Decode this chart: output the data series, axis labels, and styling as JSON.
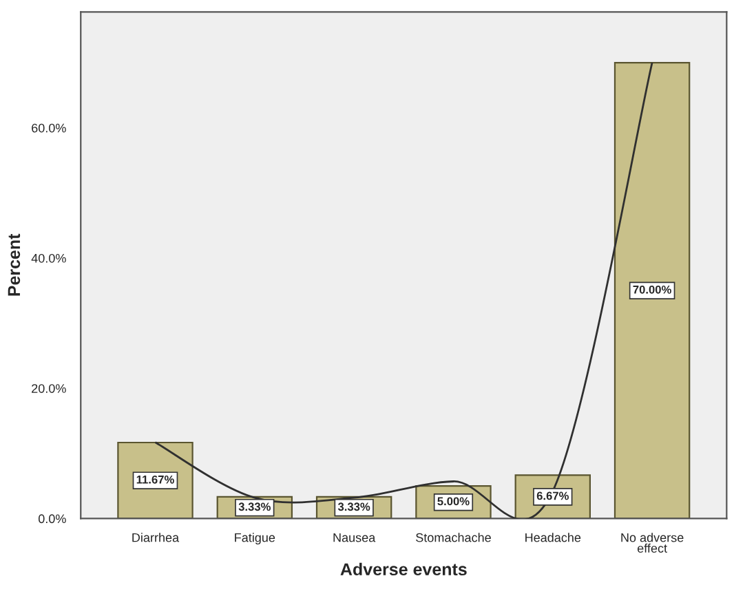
{
  "chart_data": {
    "type": "bar",
    "xlabel": "Adverse events",
    "ylabel": "Percent",
    "categories": [
      "Diarrhea",
      "Fatigue",
      "Nausea",
      "Stomachache",
      "Headache",
      "No adverse\neffect"
    ],
    "series": [
      {
        "color": "#c8c08a",
        "values": [
          11.67,
          3.33,
          3.33,
          5.0,
          6.67,
          70.0
        ],
        "value_labels": [
          "11.67%",
          "3.33%",
          "3.33%",
          "5.00%",
          "6.67%",
          "70.00%"
        ]
      },
      {
        "type": "line",
        "color": "#303030",
        "values": [
          11.7,
          3.2,
          3.2,
          5.7,
          4.2,
          70.0
        ]
      }
    ],
    "ylim": [
      0,
      77.8
    ],
    "yticks": [
      {
        "value": 0,
        "label": "0.0%"
      },
      {
        "value": 20,
        "label": "20.0%"
      },
      {
        "value": 40,
        "label": "40.0%"
      },
      {
        "value": 60,
        "label": "60.0%"
      }
    ],
    "grid": false,
    "legend": false
  }
}
